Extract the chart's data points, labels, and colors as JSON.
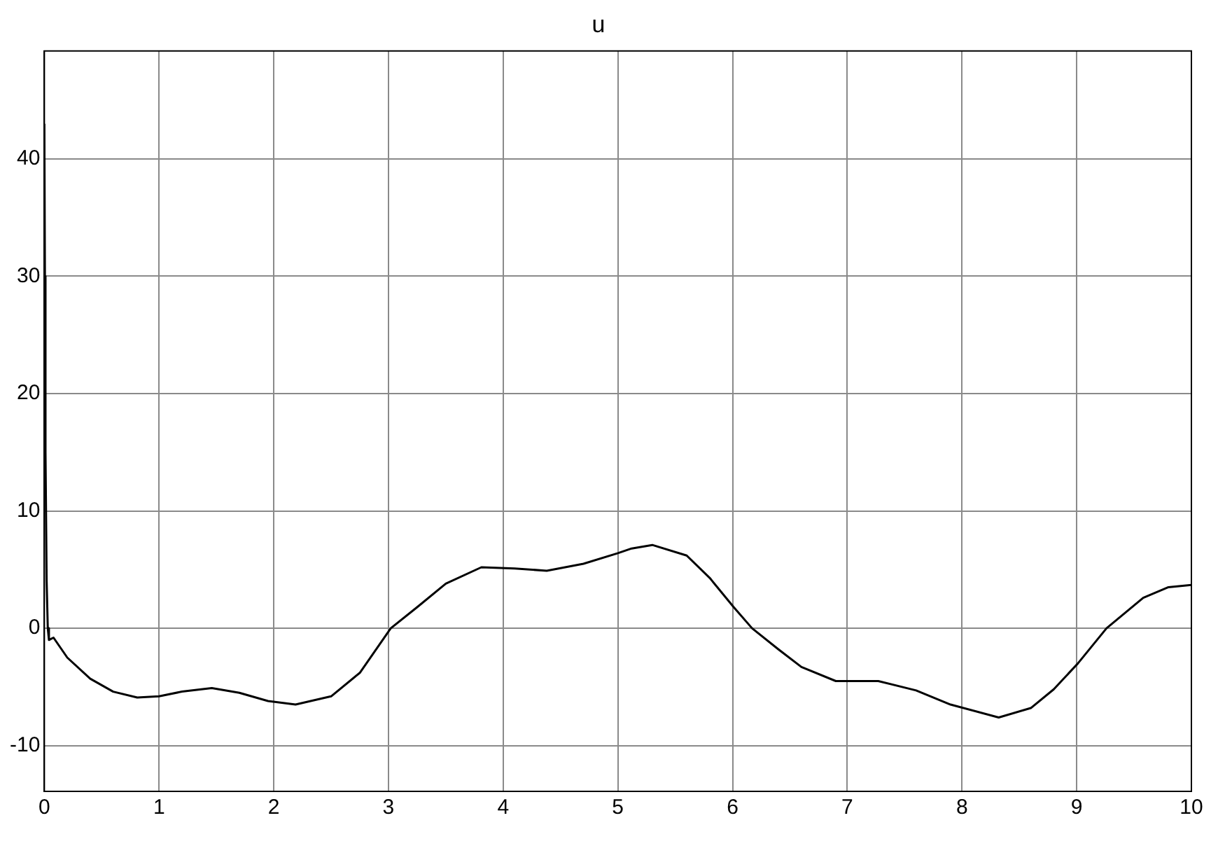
{
  "chart_data": {
    "type": "line",
    "title": "u",
    "x": [
      0,
      0.005,
      0.01,
      0.02,
      0.03,
      0.04,
      0.06,
      0.08,
      0.2,
      0.4,
      0.6,
      0.81,
      1.0,
      1.2,
      1.46,
      1.7,
      1.95,
      2.19,
      2.5,
      2.75,
      3.02,
      3.25,
      3.5,
      3.81,
      4.1,
      4.38,
      4.7,
      5.0,
      5.12,
      5.3,
      5.6,
      5.8,
      6.01,
      6.17,
      6.4,
      6.6,
      6.9,
      7.27,
      7.6,
      7.9,
      8.32,
      8.6,
      8.8,
      9.01,
      9.26,
      9.58,
      9.8,
      10
    ],
    "series": [
      {
        "color": "#000000",
        "values": [
          43,
          30,
          15,
          4,
          0,
          -1,
          -0.9,
          -0.8,
          -2.5,
          -4.3,
          -5.4,
          -5.9,
          -5.8,
          -5.4,
          -5.1,
          -5.5,
          -6.2,
          -6.5,
          -5.8,
          -3.8,
          0,
          1.8,
          3.8,
          5.2,
          5.1,
          4.9,
          5.5,
          6.4,
          6.8,
          7.1,
          6.2,
          4.3,
          1.8,
          0,
          -1.8,
          -3.3,
          -4.5,
          -4.5,
          -5.3,
          -6.5,
          -7.6,
          -6.8,
          -5.2,
          -3.0,
          0,
          2.6,
          3.5,
          3.7
        ]
      }
    ],
    "xlim": [
      0,
      10
    ],
    "xticks": [
      0,
      1,
      2,
      3,
      4,
      5,
      6,
      7,
      8,
      9,
      10
    ],
    "ylim": [
      -13.9,
      49.2
    ],
    "yticks": [
      -10,
      0,
      10,
      20,
      30,
      40
    ],
    "grid": true,
    "legend": false,
    "marker": "none",
    "line_style": "solid"
  }
}
